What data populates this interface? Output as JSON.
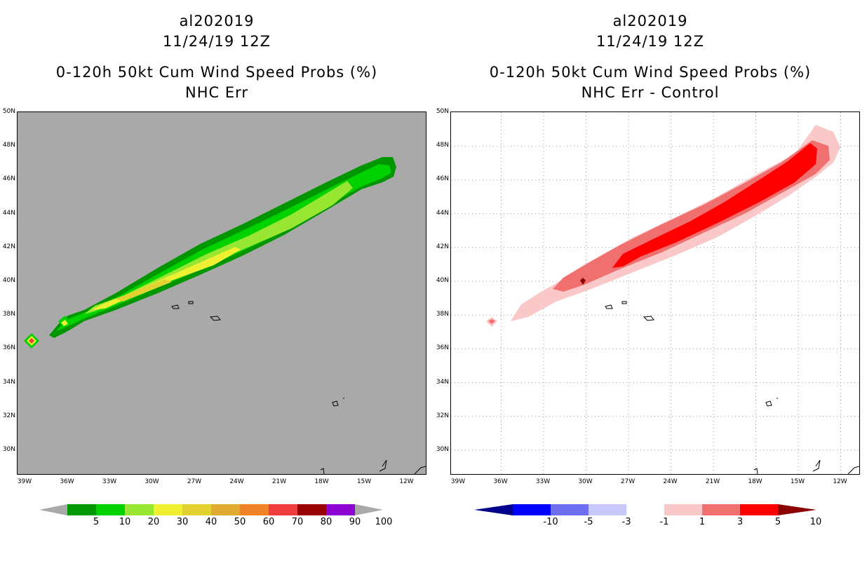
{
  "left_panel": {
    "title_line1": "al202019",
    "title_line2": "11/24/19 12Z",
    "title_line3": "0-120h 50kt Cum Wind Speed Probs (%)",
    "title_line4": "NHC Err",
    "background_color": "#a9a9a9",
    "colorbar": {
      "ticks": [
        "5",
        "10",
        "20",
        "30",
        "40",
        "50",
        "60",
        "70",
        "80",
        "90",
        "100"
      ],
      "colors": [
        "#a9a9a9",
        "#009600",
        "#00d200",
        "#96e632",
        "#f0f032",
        "#e1d232",
        "#e1aa32",
        "#f08228",
        "#f03c3c",
        "#960000",
        "#8c00d2",
        "#a9a9a9"
      ]
    }
  },
  "right_panel": {
    "title_line1": "al202019",
    "title_line2": "11/24/19 12Z",
    "title_line3": "0-120h 50kt Cum Wind Speed Probs (%)",
    "title_line4": "NHC Err - Control",
    "background_color": "#ffffff",
    "colorbar": {
      "ticks": [
        "-10",
        "-5",
        "-3",
        "-1",
        "1",
        "3",
        "5",
        "10"
      ],
      "colors": [
        "#00008c",
        "#0000ff",
        "#6e6ef0",
        "#c8c8fa",
        "#ffffff",
        "#fac8c8",
        "#f07070",
        "#ff0000",
        "#8c0000"
      ]
    }
  },
  "map": {
    "lat_labels": [
      "50N",
      "48N",
      "46N",
      "44N",
      "42N",
      "40N",
      "38N",
      "36N",
      "34N",
      "32N",
      "30N"
    ],
    "lon_labels": [
      "39W",
      "36W",
      "33W",
      "30W",
      "27W",
      "24W",
      "21W",
      "18W",
      "15W",
      "12W"
    ]
  }
}
